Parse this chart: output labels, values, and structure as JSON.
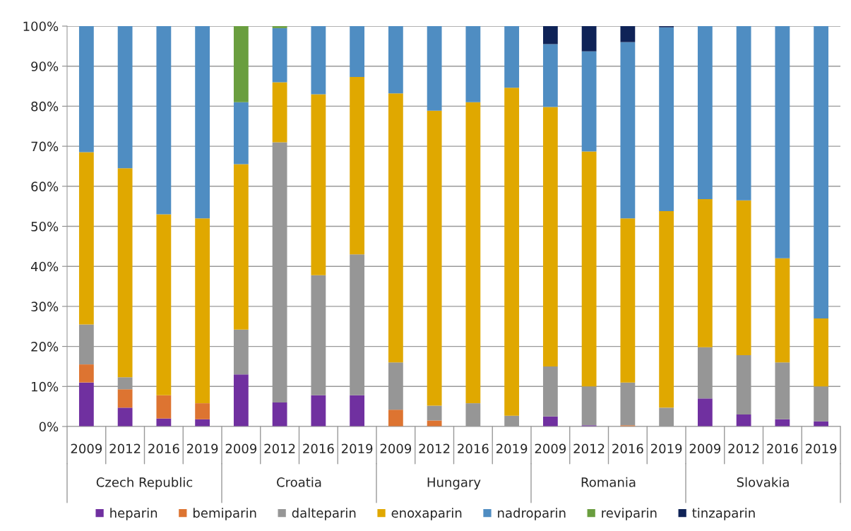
{
  "chart_data": {
    "type": "bar",
    "stacked": true,
    "categories": [
      "2009",
      "2012",
      "2016",
      "2019",
      "2009",
      "2012",
      "2016",
      "2019",
      "2009",
      "2012",
      "2016",
      "2019",
      "2009",
      "2012",
      "2016",
      "2019",
      "2009",
      "2012",
      "2016",
      "2019"
    ],
    "annotations": [
      "Czech Republic",
      "Croatia",
      "Hungary",
      "Romania",
      "Slovakia"
    ],
    "series": [
      {
        "name": "heparin",
        "color": "#7030a0",
        "values": [
          11,
          4.7,
          2,
          1.8,
          13,
          6,
          7.8,
          7.8,
          0,
          0,
          0,
          0,
          2.5,
          0.3,
          0,
          0,
          7,
          3,
          1.8,
          1.3
        ]
      },
      {
        "name": "bemiparin",
        "color": "#dd7431",
        "values": [
          4.5,
          4.6,
          5.8,
          4,
          0,
          0,
          0,
          0,
          4.2,
          1.5,
          0,
          0,
          0,
          0,
          0.3,
          0,
          0,
          0,
          0,
          0
        ]
      },
      {
        "name": "dalteparin",
        "color": "#969696",
        "values": [
          10,
          3,
          0,
          0,
          11.2,
          65,
          30,
          35.2,
          11.8,
          3.7,
          5.8,
          2.7,
          12.5,
          9.7,
          10.7,
          4.7,
          12.8,
          14.8,
          14.2,
          8.7
        ]
      },
      {
        "name": "enoxaparin",
        "color": "#e0a800",
        "values": [
          43,
          52.2,
          45.2,
          46.2,
          41.3,
          15,
          45.2,
          44.3,
          67.2,
          73.7,
          75.2,
          81.9,
          64.8,
          58.7,
          41,
          49.1,
          37,
          38.7,
          26,
          17
        ]
      },
      {
        "name": "nadroparin",
        "color": "#4f8dc2",
        "values": [
          31.5,
          35.5,
          47,
          48,
          15.5,
          13.5,
          17,
          12.7,
          16.8,
          21.1,
          19,
          15.4,
          15.7,
          25,
          44,
          45.9,
          43.2,
          43.5,
          58,
          73
        ]
      },
      {
        "name": "reviparin",
        "color": "#6a9e3f",
        "values": [
          0,
          0,
          0,
          0,
          19,
          0.5,
          0,
          0,
          0,
          0,
          0,
          0,
          0,
          0,
          0,
          0,
          0,
          0,
          0,
          0
        ]
      },
      {
        "name": "tinzaparin",
        "color": "#0f2357",
        "values": [
          0,
          0,
          0,
          0,
          0,
          0,
          0,
          0,
          0,
          0,
          0,
          0,
          4.5,
          6.3,
          4,
          0.3,
          0,
          0,
          0,
          0
        ]
      }
    ],
    "ylim": [
      0,
      100
    ],
    "yticks": [
      {
        "value": 0,
        "label": "0%"
      },
      {
        "value": 10,
        "label": "10%"
      },
      {
        "value": 20,
        "label": "20%"
      },
      {
        "value": 30,
        "label": "30%"
      },
      {
        "value": 40,
        "label": "40%"
      },
      {
        "value": 50,
        "label": "50%"
      },
      {
        "value": 60,
        "label": "60%"
      },
      {
        "value": 70,
        "label": "70%"
      },
      {
        "value": 80,
        "label": "80%"
      },
      {
        "value": 90,
        "label": "90%"
      },
      {
        "value": 100,
        "label": "100%"
      }
    ],
    "grid": "y",
    "legend": "bottom"
  }
}
